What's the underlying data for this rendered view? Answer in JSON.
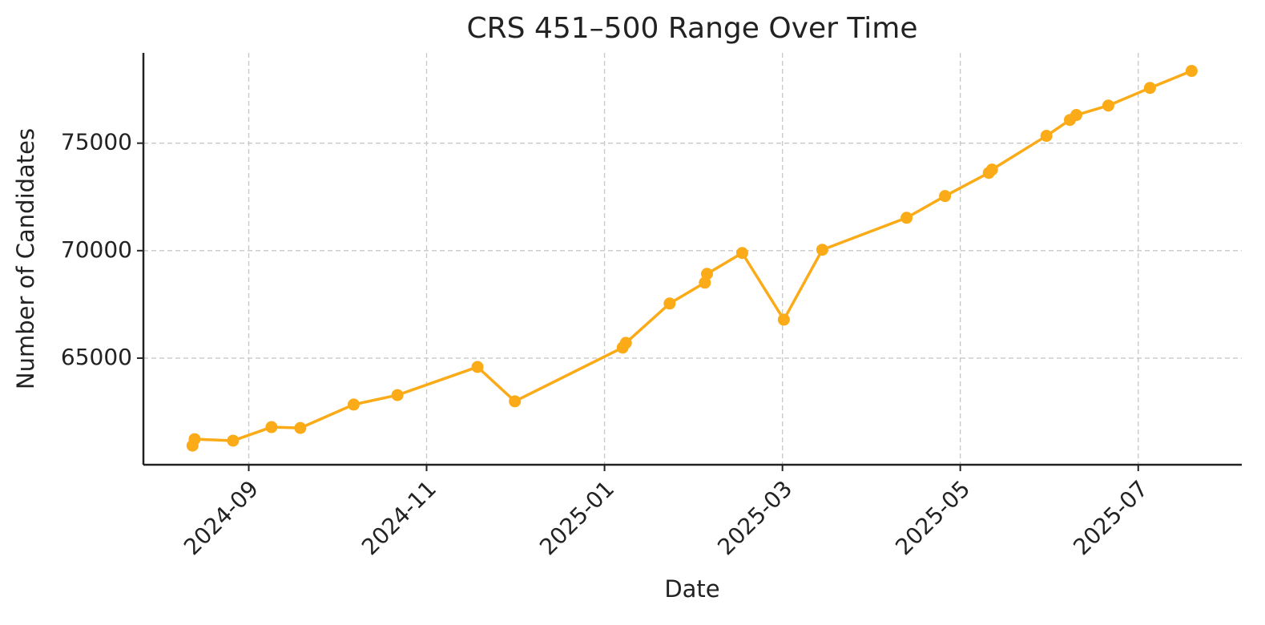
{
  "chart_data": {
    "type": "line",
    "title": "CRS 451–500 Range Over Time",
    "xlabel": "Date",
    "ylabel": "Number of Candidates",
    "x": [
      2024.614,
      2024.616,
      2024.652,
      2024.688,
      2024.715,
      2024.765,
      2024.806,
      2024.881,
      2024.916,
      2025.017,
      2025.02,
      2025.061,
      2025.094,
      2025.096,
      2025.129,
      2025.168,
      2025.204,
      2025.283,
      2025.319,
      2025.36,
      2025.363,
      2025.414,
      2025.436,
      2025.442,
      2025.472,
      2025.511,
      2025.55
    ],
    "values": [
      60930,
      61230,
      61160,
      61790,
      61750,
      62840,
      63280,
      64590,
      62990,
      65490,
      65710,
      67540,
      68510,
      68920,
      69890,
      66790,
      70040,
      71530,
      72540,
      73620,
      73770,
      75340,
      76080,
      76310,
      76750,
      77570,
      78360
    ],
    "color": "#fbab18",
    "xlim": [
      2024.568,
      2025.597
    ],
    "xticks": [
      {
        "value": 2024.6667,
        "label": "2024-09"
      },
      {
        "value": 2024.8333,
        "label": "2024-11"
      },
      {
        "value": 2025.0,
        "label": "2025-01"
      },
      {
        "value": 2025.1667,
        "label": "2025-03"
      },
      {
        "value": 2025.3333,
        "label": "2025-05"
      },
      {
        "value": 2025.5,
        "label": "2025-07"
      }
    ],
    "ylim": [
      60040,
      79200
    ],
    "yticks": [
      65000,
      70000,
      75000
    ],
    "grid": true
  }
}
